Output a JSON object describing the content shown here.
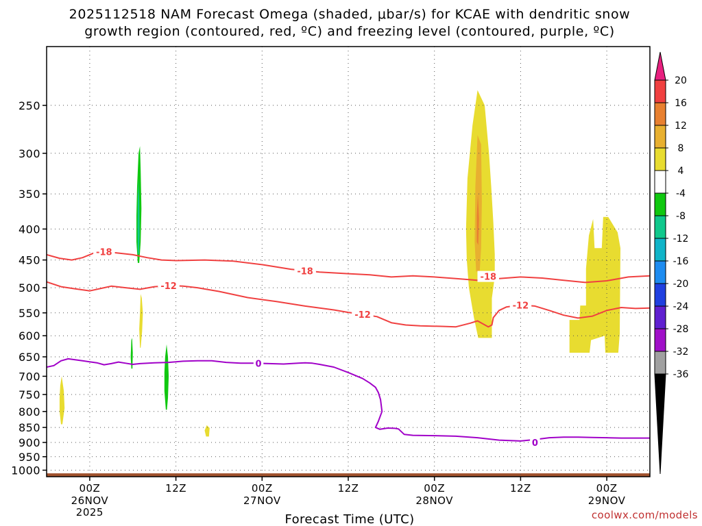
{
  "title_line1": "2025112518 NAM Forecast Omega (shaded, μbar/s) for KCAE with dendritic snow",
  "title_line2": "growth region (contoured, red, ºC) and freezing level (contoured, purple, ºC)",
  "credit": "coolwx.com/models",
  "colors": {
    "snow_contour": "#f04040",
    "freezing_contour": "#a000c8",
    "ground": "#a0522d",
    "credit": "#c03030"
  },
  "chart_data": {
    "type": "time-height cross section",
    "xlabel": "Forecast Time (UTC)",
    "x_range_hours": [
      0,
      84
    ],
    "x_ticks": [
      {
        "hour": 6,
        "label": "00Z",
        "sub1": "26NOV",
        "sub2": "2025"
      },
      {
        "hour": 18,
        "label": "12Z",
        "sub1": "",
        "sub2": ""
      },
      {
        "hour": 30,
        "label": "00Z",
        "sub1": "27NOV",
        "sub2": ""
      },
      {
        "hour": 42,
        "label": "12Z",
        "sub1": "",
        "sub2": ""
      },
      {
        "hour": 54,
        "label": "00Z",
        "sub1": "28NOV",
        "sub2": ""
      },
      {
        "hour": 66,
        "label": "12Z",
        "sub1": "",
        "sub2": ""
      },
      {
        "hour": 78,
        "label": "00Z",
        "sub1": "29NOV",
        "sub2": ""
      }
    ],
    "y_axis": "pressure (hPa)",
    "y_range": [
      1025,
      200
    ],
    "y_scale": "log",
    "y_ticks": [
      250,
      300,
      350,
      400,
      450,
      500,
      550,
      600,
      650,
      700,
      750,
      800,
      850,
      900,
      950,
      1000
    ],
    "grid": true,
    "colorbar": {
      "position": "right",
      "bins": [
        {
          "color": "#e8207f",
          "label": "20"
        },
        {
          "color": "#f04040",
          "label": "16"
        },
        {
          "color": "#e88030",
          "label": "12"
        },
        {
          "color": "#e8b030",
          "label": "8"
        },
        {
          "color": "#e8dc30",
          "label": "4"
        },
        {
          "color": "#ffffff",
          "label": "-4"
        },
        {
          "color": "#10c810",
          "label": "-8"
        },
        {
          "color": "#10c88c",
          "label": "-12"
        },
        {
          "color": "#10b4c8",
          "label": "-16"
        },
        {
          "color": "#1e8cf0",
          "label": "-20"
        },
        {
          "color": "#2040e0",
          "label": "-24"
        },
        {
          "color": "#6020d0",
          "label": "-28"
        },
        {
          "color": "#a010c8",
          "label": "-32"
        },
        {
          "color": "#a0a0a0",
          "label": "-36"
        }
      ]
    },
    "omega_regions": [
      {
        "name": "green-upper",
        "color": "#10c810",
        "points": [
          [
            12.7,
            455
          ],
          [
            12.5,
            420
          ],
          [
            12.5,
            380
          ],
          [
            12.6,
            340
          ],
          [
            12.8,
            300
          ],
          [
            13.0,
            292
          ],
          [
            13.1,
            320
          ],
          [
            13.2,
            370
          ],
          [
            13.1,
            420
          ],
          [
            12.9,
            455
          ]
        ]
      },
      {
        "name": "teal-core",
        "color": "#10c88c",
        "points": [
          [
            12.7,
            440
          ],
          [
            12.65,
            400
          ],
          [
            12.7,
            355
          ],
          [
            12.8,
            330
          ],
          [
            12.9,
            360
          ],
          [
            12.95,
            410
          ],
          [
            12.85,
            440
          ]
        ]
      },
      {
        "name": "yellow-mid",
        "color": "#e8dc30",
        "points": [
          [
            13.0,
            628
          ],
          [
            12.9,
            585
          ],
          [
            13.0,
            550
          ],
          [
            13.1,
            512
          ],
          [
            13.25,
            520
          ],
          [
            13.4,
            550
          ],
          [
            13.3,
            590
          ],
          [
            13.1,
            628
          ]
        ]
      },
      {
        "name": "green-low1",
        "color": "#10c810",
        "points": [
          [
            11.8,
            680
          ],
          [
            11.7,
            650
          ],
          [
            11.8,
            610
          ],
          [
            11.9,
            605
          ],
          [
            12.0,
            640
          ],
          [
            11.95,
            680
          ]
        ]
      },
      {
        "name": "green-low2",
        "color": "#10c810",
        "points": [
          [
            16.6,
            795
          ],
          [
            16.4,
            740
          ],
          [
            16.4,
            690
          ],
          [
            16.5,
            650
          ],
          [
            16.7,
            620
          ],
          [
            16.9,
            650
          ],
          [
            17.0,
            700
          ],
          [
            16.9,
            760
          ],
          [
            16.75,
            795
          ]
        ]
      },
      {
        "name": "yellow-left",
        "color": "#e8dc30",
        "points": [
          [
            2.0,
            840
          ],
          [
            1.8,
            800
          ],
          [
            1.8,
            760
          ],
          [
            1.9,
            725
          ],
          [
            2.1,
            700
          ],
          [
            2.4,
            740
          ],
          [
            2.5,
            790
          ],
          [
            2.2,
            840
          ]
        ]
      },
      {
        "name": "yellow-dot",
        "color": "#e8dc30",
        "points": [
          [
            22.2,
            880
          ],
          [
            22.0,
            860
          ],
          [
            22.3,
            843
          ],
          [
            22.7,
            852
          ],
          [
            22.6,
            880
          ]
        ]
      },
      {
        "name": "yellow-main",
        "color": "#e8dc30",
        "points": [
          [
            58.4,
            400
          ],
          [
            58.6,
            330
          ],
          [
            59.3,
            270
          ],
          [
            60.0,
            236
          ],
          [
            61.0,
            250
          ],
          [
            61.6,
            300
          ],
          [
            61.9,
            340
          ],
          [
            62.2,
            390
          ],
          [
            62.4,
            440
          ],
          [
            62.4,
            480
          ],
          [
            62.0,
            520
          ],
          [
            62.0,
            605
          ],
          [
            60.1,
            605
          ],
          [
            59.5,
            560
          ],
          [
            58.8,
            500
          ],
          [
            58.5,
            450
          ]
        ]
      },
      {
        "name": "orange-core",
        "color": "#e8b030",
        "points": [
          [
            59.8,
            470
          ],
          [
            59.6,
            420
          ],
          [
            59.7,
            340
          ],
          [
            60.0,
            280
          ],
          [
            60.5,
            290
          ],
          [
            60.6,
            360
          ],
          [
            60.5,
            430
          ],
          [
            60.3,
            470
          ]
        ]
      },
      {
        "name": "red-orange-center",
        "color": "#e88030",
        "points": [
          [
            59.9,
            420
          ],
          [
            59.9,
            380
          ],
          [
            60.05,
            350
          ],
          [
            60.2,
            385
          ],
          [
            60.1,
            425
          ]
        ]
      },
      {
        "name": "yellow-right",
        "color": "#e8dc30",
        "points": [
          [
            72.8,
            640
          ],
          [
            72.8,
            565
          ],
          [
            74.2,
            565
          ],
          [
            74.3,
            535
          ],
          [
            75.1,
            535
          ],
          [
            75.1,
            465
          ],
          [
            75.5,
            410
          ],
          [
            76.1,
            385
          ],
          [
            76.3,
            430
          ],
          [
            77.3,
            430
          ],
          [
            77.5,
            382
          ],
          [
            78.2,
            382
          ],
          [
            79.5,
            405
          ],
          [
            79.9,
            430
          ],
          [
            79.8,
            595
          ],
          [
            79.6,
            640
          ],
          [
            77.8,
            640
          ],
          [
            77.7,
            600
          ],
          [
            75.8,
            610
          ],
          [
            75.6,
            640
          ]
        ]
      }
    ],
    "contours": [
      {
        "label": "-18",
        "kind": "snow",
        "points": [
          [
            0,
            441
          ],
          [
            1.8,
            447
          ],
          [
            3.5,
            450
          ],
          [
            5,
            446
          ],
          [
            6,
            441
          ],
          [
            7,
            436
          ],
          [
            9,
            437
          ],
          [
            12,
            441
          ],
          [
            14,
            446
          ],
          [
            16,
            450
          ],
          [
            18,
            451
          ],
          [
            22,
            450
          ],
          [
            26,
            452
          ],
          [
            30,
            458
          ],
          [
            34,
            466
          ],
          [
            38,
            471
          ],
          [
            42,
            474
          ],
          [
            45,
            476
          ],
          [
            48,
            480
          ],
          [
            51,
            478
          ],
          [
            54,
            480
          ],
          [
            57,
            483
          ],
          [
            60,
            486
          ],
          [
            63,
            483
          ],
          [
            66,
            480
          ],
          [
            69,
            482
          ],
          [
            72,
            486
          ],
          [
            75,
            490
          ],
          [
            78,
            487
          ],
          [
            81,
            480
          ],
          [
            84,
            478
          ]
        ],
        "label_pos": [
          [
            8,
            436
          ],
          [
            36,
            469
          ],
          [
            61.5,
            479
          ]
        ]
      },
      {
        "label": "-12",
        "kind": "snow",
        "points": [
          [
            0,
            489
          ],
          [
            2,
            498
          ],
          [
            4,
            502
          ],
          [
            6,
            506
          ],
          [
            8,
            500
          ],
          [
            9,
            497
          ],
          [
            11,
            500
          ],
          [
            13,
            503
          ],
          [
            15,
            498
          ],
          [
            17,
            496
          ],
          [
            19,
            497
          ],
          [
            21,
            500
          ],
          [
            24,
            507
          ],
          [
            28,
            519
          ],
          [
            32,
            527
          ],
          [
            36,
            536
          ],
          [
            40,
            544
          ],
          [
            42,
            549
          ],
          [
            44,
            553
          ],
          [
            46,
            558
          ],
          [
            48,
            571
          ],
          [
            50,
            576
          ],
          [
            52,
            578
          ],
          [
            55,
            579
          ],
          [
            57,
            580
          ],
          [
            59,
            572
          ],
          [
            60,
            567
          ],
          [
            61.5,
            580
          ],
          [
            62.0,
            576
          ],
          [
            62.2,
            560
          ],
          [
            63,
            545
          ],
          [
            64,
            538
          ],
          [
            66,
            534
          ],
          [
            68,
            536
          ],
          [
            70,
            545
          ],
          [
            72,
            555
          ],
          [
            74,
            561
          ],
          [
            76,
            557
          ],
          [
            78,
            545
          ],
          [
            80,
            539
          ],
          [
            82,
            541
          ],
          [
            84,
            540
          ]
        ],
        "label_pos": [
          [
            17,
            496
          ],
          [
            44,
            553
          ],
          [
            66,
            534
          ]
        ]
      },
      {
        "label": "0",
        "kind": "freezing",
        "points": [
          [
            0,
            676
          ],
          [
            1,
            672
          ],
          [
            2,
            660
          ],
          [
            3,
            655
          ],
          [
            5,
            660
          ],
          [
            7,
            665
          ],
          [
            8,
            670
          ],
          [
            9,
            667
          ],
          [
            10,
            663
          ],
          [
            11,
            666
          ],
          [
            12,
            669
          ],
          [
            13,
            667
          ],
          [
            15,
            665
          ],
          [
            17,
            664
          ],
          [
            19,
            661
          ],
          [
            21,
            660
          ],
          [
            23,
            660
          ],
          [
            25,
            664
          ],
          [
            27,
            666
          ],
          [
            29,
            666
          ],
          [
            31,
            667
          ],
          [
            33,
            668
          ],
          [
            34,
            667
          ],
          [
            35,
            666
          ],
          [
            36,
            665
          ],
          [
            37,
            666
          ],
          [
            38,
            669
          ],
          [
            40,
            676
          ],
          [
            42,
            690
          ],
          [
            44,
            706
          ],
          [
            45,
            718
          ],
          [
            45.8,
            730
          ],
          [
            46.2,
            745
          ],
          [
            46.5,
            765
          ],
          [
            46.7,
            800
          ],
          [
            46.2,
            830
          ],
          [
            45.8,
            850
          ],
          [
            46.4,
            856
          ],
          [
            47.5,
            852
          ],
          [
            48.5,
            853
          ],
          [
            49,
            855
          ],
          [
            49.8,
            873
          ],
          [
            51,
            876
          ],
          [
            54,
            877
          ],
          [
            57,
            879
          ],
          [
            60,
            884
          ],
          [
            63,
            892
          ],
          [
            66,
            895
          ],
          [
            68,
            890
          ],
          [
            70,
            884
          ],
          [
            72,
            882
          ],
          [
            74,
            882
          ],
          [
            76,
            883
          ],
          [
            78,
            884
          ],
          [
            80,
            885
          ],
          [
            82,
            885
          ],
          [
            84,
            885
          ]
        ],
        "label_pos": [
          [
            29.5,
            666
          ],
          [
            68,
            900
          ]
        ]
      }
    ]
  }
}
